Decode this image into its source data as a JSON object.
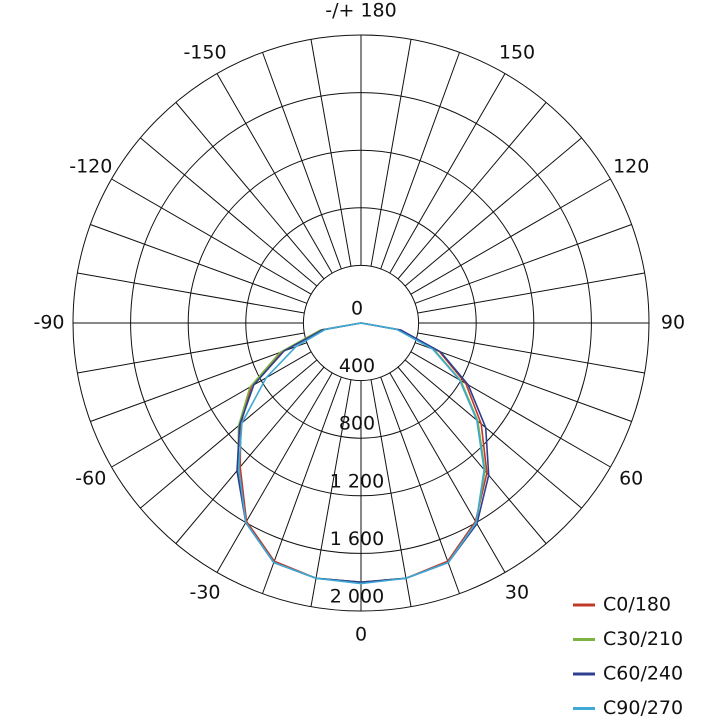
{
  "chart_data": {
    "type": "polar",
    "theta": [
      -90,
      -80,
      -70,
      -60,
      -50,
      -40,
      -30,
      -20,
      -10,
      0,
      10,
      20,
      30,
      40,
      50,
      60,
      70,
      80,
      90
    ],
    "series": [
      {
        "name": "C0/180",
        "color": "#c0392b",
        "values": [
          0,
          285,
          590,
          880,
          1090,
          1305,
          1590,
          1760,
          1800,
          1800,
          1800,
          1760,
          1590,
          1360,
          1090,
          840,
          580,
          275,
          0
        ]
      },
      {
        "name": "C30/210",
        "color": "#7cb342",
        "values": [
          0,
          290,
          600,
          890,
          1110,
          1330,
          1600,
          1770,
          1800,
          1800,
          1800,
          1770,
          1600,
          1340,
          1060,
          800,
          540,
          260,
          0
        ]
      },
      {
        "name": "C60/240",
        "color": "#2e3f8f",
        "values": [
          0,
          270,
          570,
          860,
          1100,
          1340,
          1600,
          1770,
          1800,
          1800,
          1800,
          1770,
          1610,
          1380,
          1130,
          860,
          590,
          280,
          0
        ]
      },
      {
        "name": "C90/270",
        "color": "#3fa9d6",
        "values": [
          0,
          250,
          480,
          760,
          1080,
          1320,
          1600,
          1770,
          1800,
          1810,
          1800,
          1770,
          1600,
          1330,
          1050,
          790,
          530,
          250,
          0
        ]
      }
    ],
    "rlim": [
      0,
      2000
    ],
    "rticks": [
      0,
      400,
      800,
      {
        "value": 1200,
        "label": "1 200"
      },
      {
        "value": 1600,
        "label": "1 600"
      },
      {
        "value": 2000,
        "label": "2 000"
      }
    ],
    "thetaticks": [
      0,
      30,
      60,
      90,
      120,
      150,
      {
        "value": 180,
        "label": "-/+ 180"
      },
      -150,
      -120,
      -90,
      -60,
      -30
    ],
    "legend": "bottom-right"
  }
}
